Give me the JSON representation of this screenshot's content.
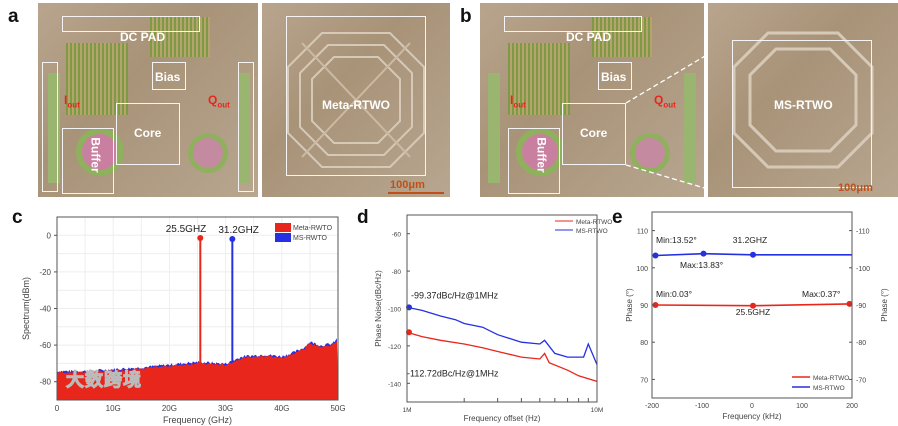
{
  "panels": {
    "a": {
      "label": "a",
      "dc_pad": "DC PAD",
      "bias": "Bias",
      "core": "Core",
      "buffer": "Buffer",
      "i_out": "I",
      "i_out_sub": "out",
      "q_out": "Q",
      "q_out_sub": "out",
      "inductor": "Meta-RTWO",
      "scale": "100μm"
    },
    "b": {
      "label": "b",
      "dc_pad": "DC PAD",
      "bias": "Bias",
      "core": "Core",
      "buffer": "Buffer",
      "i_out": "I",
      "i_out_sub": "out",
      "q_out": "Q",
      "q_out_sub": "out",
      "inductor": "MS-RTWO",
      "scale": "100μm"
    }
  },
  "watermark": "大数跨境",
  "colors": {
    "red": "#e8261c",
    "blue": "#2530e0"
  },
  "chart_data": [
    {
      "panel": "c",
      "type": "area",
      "xlabel": "Frequency (GHz)",
      "ylabel": "Spectrum(dBm)",
      "xlim": [
        0,
        50
      ],
      "ylim": [
        -90,
        10
      ],
      "xticks": [
        0,
        10,
        20,
        30,
        40,
        50
      ],
      "xticklabels": [
        "0",
        "10G",
        "20G",
        "30G",
        "40G",
        "50G"
      ],
      "yticks": [
        0,
        -20,
        -40,
        -60,
        -80
      ],
      "legend": [
        "Meta-RWTO",
        "MS-RWTO"
      ],
      "legend_position": "top-right",
      "noise_floor": {
        "x": [
          0,
          5,
          10,
          15,
          20,
          25,
          30,
          33,
          37,
          40,
          42,
          44,
          45,
          47,
          49,
          50
        ],
        "y": [
          -75,
          -75,
          -74,
          -73,
          -71.5,
          -70,
          -71,
          -67,
          -66,
          -67,
          -65,
          -62,
          -59,
          -61,
          -60,
          -57
        ]
      },
      "peaks": [
        {
          "series": "Meta-RWTO",
          "x": 25.5,
          "y": -1.5,
          "label": "25.5GHZ"
        },
        {
          "series": "MS-RWTO",
          "x": 31.2,
          "y": -2,
          "label": "31.2GHZ"
        }
      ]
    },
    {
      "panel": "d",
      "type": "line",
      "xlabel": "Frequency offset (Hz)",
      "ylabel": "Phase Noise(dBc/Hz)",
      "xscale": "log",
      "xlim": [
        1000000,
        10000000
      ],
      "ylim": [
        -150,
        -50
      ],
      "xticklabels": [
        "1M",
        "10M"
      ],
      "yticks": [
        -60,
        -80,
        -100,
        -120,
        -140
      ],
      "legend_position": "top-right",
      "series": [
        {
          "name": "Meta-RTWO",
          "x": [
            1.0,
            1.2,
            1.5,
            2,
            2.5,
            3,
            4,
            5,
            5.3,
            5.6,
            7,
            8,
            10
          ],
          "y": [
            -112.72,
            -115,
            -117,
            -119,
            -121,
            -123,
            -126,
            -127,
            -124,
            -129,
            -133,
            -136,
            -139
          ]
        },
        {
          "name": "MS-RTWO",
          "x": [
            1.0,
            1.2,
            1.5,
            1.8,
            2,
            2.5,
            3,
            4,
            5,
            5.3,
            6,
            7,
            8.5,
            9,
            10
          ],
          "y": [
            -99.37,
            -101,
            -104,
            -106,
            -108,
            -110,
            -114,
            -118,
            -119,
            -117,
            -124,
            -126,
            -126,
            -119,
            -130
          ]
        }
      ],
      "annotations": [
        "-99.37dBc/Hz@1MHz",
        "-112.72dBc/Hz@1MHz"
      ]
    },
    {
      "panel": "e",
      "type": "line",
      "xlabel": "Frequency (kHz)",
      "ylabel": "Phase (°)",
      "ylabel_right": "Phase (°)",
      "xlim": [
        -200,
        200
      ],
      "ylim": [
        65,
        115
      ],
      "xticks": [
        -200,
        -100,
        0,
        100,
        200
      ],
      "yticks": [
        70,
        80,
        90,
        100,
        110
      ],
      "yticklabels_right": [
        "-70",
        "-80",
        "-90",
        "-100",
        "-110"
      ],
      "legend_position": "bottom-right",
      "series": [
        {
          "name": "Meta-RTWO",
          "x": [
            -193,
            2,
            195
          ],
          "y": [
            90,
            89.8,
            90.3
          ],
          "line_end": [
            200,
            90.3
          ]
        },
        {
          "name": "MS-RTWO",
          "x": [
            -193,
            -97,
            2
          ],
          "y": [
            103.3,
            103.8,
            103.5
          ],
          "line_end": [
            200,
            103.5
          ]
        }
      ],
      "annotations": [
        "Min:13.52°",
        "Max:13.83°",
        "31.2GHZ",
        "Min:0.03°",
        "25.5GHZ",
        "Max:0.37°"
      ]
    }
  ],
  "panel_labels": {
    "c": "c",
    "d": "d",
    "e": "e"
  }
}
